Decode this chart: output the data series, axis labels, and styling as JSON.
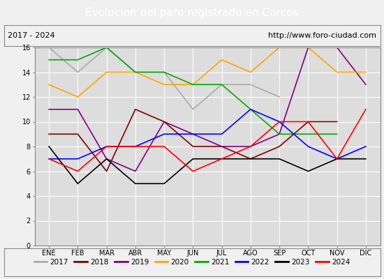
{
  "title": "Evolucion del paro registrado en Corcos",
  "subtitle_left": "2017 - 2024",
  "subtitle_right": "http://www.foro-ciudad.com",
  "months": [
    "ENE",
    "FEB",
    "MAR",
    "ABR",
    "MAY",
    "JUN",
    "JUL",
    "AGO",
    "SEP",
    "OCT",
    "NOV",
    "DIC"
  ],
  "ylim": [
    0,
    16
  ],
  "yticks": [
    0,
    2,
    4,
    6,
    8,
    10,
    12,
    14,
    16
  ],
  "series": {
    "2017": {
      "color": "#aaaaaa",
      "values": [
        16,
        14,
        16,
        14,
        14,
        11,
        13,
        13,
        12,
        null,
        null,
        null
      ]
    },
    "2018": {
      "color": "#800000",
      "values": [
        9,
        9,
        6,
        11,
        10,
        8,
        8,
        7,
        8,
        10,
        10,
        null
      ]
    },
    "2019": {
      "color": "#800080",
      "values": [
        11,
        11,
        7,
        6,
        10,
        9,
        8,
        8,
        9,
        16,
        16,
        13
      ]
    },
    "2020": {
      "color": "#ffa500",
      "values": [
        13,
        12,
        14,
        14,
        13,
        13,
        15,
        14,
        16,
        16,
        14,
        14
      ]
    },
    "2021": {
      "color": "#00aa00",
      "values": [
        15,
        15,
        16,
        14,
        14,
        13,
        13,
        11,
        9,
        9,
        9,
        null
      ]
    },
    "2022": {
      "color": "#0000ff",
      "values": [
        7,
        7,
        8,
        8,
        9,
        9,
        9,
        11,
        10,
        8,
        7,
        8
      ]
    },
    "2023": {
      "color": "#000000",
      "values": [
        8,
        5,
        7,
        5,
        5,
        7,
        7,
        7,
        7,
        6,
        7,
        7
      ]
    },
    "2024": {
      "color": "#ff0000",
      "values": [
        7,
        6,
        8,
        8,
        8,
        6,
        7,
        8,
        10,
        10,
        7,
        11
      ]
    }
  },
  "title_bg": "#4472c4",
  "title_color": "#ffffff",
  "plot_bg": "#dddddd",
  "grid_color": "#ffffff",
  "outer_bg": "#f0f0f0",
  "title_fontsize": 11,
  "subtitle_fontsize": 8,
  "tick_fontsize": 7,
  "legend_fontsize": 7.5
}
